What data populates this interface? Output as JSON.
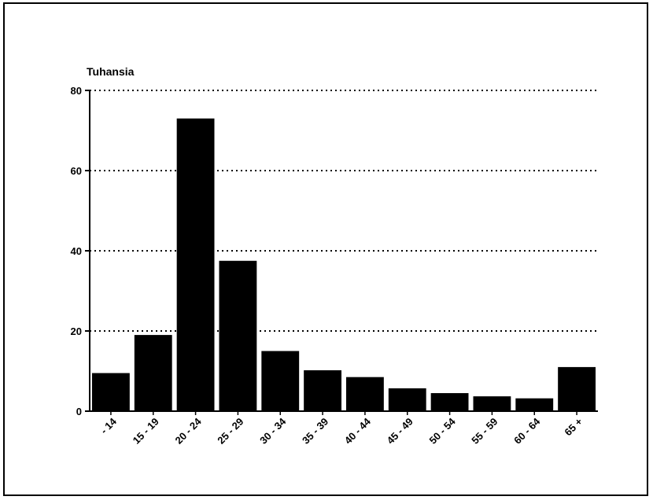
{
  "chart_data": {
    "type": "bar",
    "title": "",
    "xlabel": "",
    "ylabel": "Tuhansia",
    "categories": [
      "- 14",
      "15 - 19",
      "20 - 24",
      "25 - 29",
      "30 - 34",
      "35 - 39",
      "40 - 44",
      "45 - 49",
      "50 - 54",
      "55 - 59",
      "60 - 64",
      "65 +"
    ],
    "values": [
      9.5,
      19,
      73,
      37.5,
      15,
      10.2,
      8.5,
      5.7,
      4.5,
      3.7,
      3.2,
      11
    ],
    "ylim": [
      0,
      80
    ],
    "yticks": [
      0,
      20,
      40,
      60,
      80
    ],
    "grid": "dotted horizontal",
    "legend": "none",
    "bar_color": "#000000"
  }
}
